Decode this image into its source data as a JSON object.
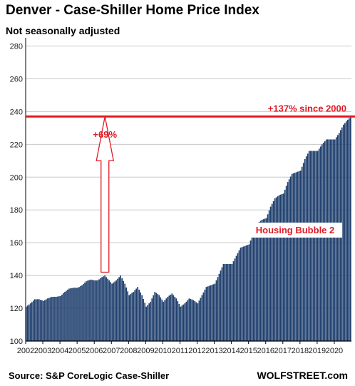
{
  "header": {
    "title": "Denver - Case-Shiller Home Price Index",
    "subtitle": "Not seasonally adjusted"
  },
  "footer": {
    "source": "Source: S&P CoreLogic Case-Shiller",
    "brand": "WOLFSTREET.com"
  },
  "colors": {
    "bar": "#1f3f6e",
    "reference_line": "#e01b24",
    "annotation": "#e01b24",
    "grid": "#c8c8c8"
  },
  "chart_data": {
    "type": "bar",
    "title": "Denver - Case-Shiller Home Price Index",
    "subtitle": "Not seasonally adjusted",
    "frequency": "monthly",
    "x_start": "2002-01",
    "x_end": "2020-12",
    "xticks": [
      "2002",
      "2003",
      "2004",
      "2005",
      "2006",
      "2007",
      "2008",
      "2009",
      "2010",
      "2011",
      "2012",
      "2013",
      "2014",
      "2015",
      "2016",
      "2017",
      "2018",
      "2019",
      "2020"
    ],
    "yticks": [
      100,
      120,
      140,
      160,
      180,
      200,
      220,
      240,
      260,
      280
    ],
    "ylim": [
      100,
      285
    ],
    "grid": true,
    "anchors": [
      [
        "2002-01",
        121
      ],
      [
        "2002-04",
        123
      ],
      [
        "2002-07",
        125.5
      ],
      [
        "2002-10",
        125.5
      ],
      [
        "2003-01",
        124.5
      ],
      [
        "2003-04",
        126
      ],
      [
        "2003-07",
        127
      ],
      [
        "2003-10",
        127
      ],
      [
        "2004-01",
        127.5
      ],
      [
        "2004-04",
        130
      ],
      [
        "2004-07",
        132
      ],
      [
        "2004-10",
        132.5
      ],
      [
        "2005-01",
        132.5
      ],
      [
        "2005-04",
        134
      ],
      [
        "2005-07",
        136.5
      ],
      [
        "2005-10",
        137.5
      ],
      [
        "2006-01",
        137
      ],
      [
        "2006-03",
        137
      ],
      [
        "2006-06",
        139
      ],
      [
        "2006-08",
        140
      ],
      [
        "2006-10",
        138
      ],
      [
        "2007-01",
        135
      ],
      [
        "2007-04",
        137
      ],
      [
        "2007-07",
        140
      ],
      [
        "2007-10",
        135
      ],
      [
        "2008-01",
        128
      ],
      [
        "2008-04",
        130
      ],
      [
        "2008-07",
        133
      ],
      [
        "2008-10",
        128
      ],
      [
        "2009-01",
        121
      ],
      [
        "2009-04",
        124
      ],
      [
        "2009-07",
        130
      ],
      [
        "2009-10",
        128
      ],
      [
        "2010-01",
        124
      ],
      [
        "2010-04",
        127
      ],
      [
        "2010-07",
        129
      ],
      [
        "2010-10",
        126
      ],
      [
        "2011-01",
        121
      ],
      [
        "2011-04",
        123
      ],
      [
        "2011-07",
        126
      ],
      [
        "2011-10",
        125
      ],
      [
        "2012-01",
        123
      ],
      [
        "2012-04",
        128
      ],
      [
        "2012-07",
        133
      ],
      [
        "2012-10",
        134
      ],
      [
        "2013-01",
        135
      ],
      [
        "2013-04",
        141
      ],
      [
        "2013-07",
        147
      ],
      [
        "2013-10",
        147
      ],
      [
        "2014-01",
        147
      ],
      [
        "2014-04",
        152
      ],
      [
        "2014-07",
        157
      ],
      [
        "2014-10",
        158
      ],
      [
        "2015-01",
        159
      ],
      [
        "2015-04",
        166
      ],
      [
        "2015-07",
        172
      ],
      [
        "2015-10",
        174
      ],
      [
        "2016-01",
        175
      ],
      [
        "2016-04",
        182
      ],
      [
        "2016-07",
        187
      ],
      [
        "2016-10",
        189
      ],
      [
        "2017-01",
        190
      ],
      [
        "2017-04",
        197
      ],
      [
        "2017-07",
        202
      ],
      [
        "2017-10",
        203
      ],
      [
        "2018-01",
        204
      ],
      [
        "2018-04",
        211
      ],
      [
        "2018-07",
        216
      ],
      [
        "2018-10",
        216
      ],
      [
        "2019-01",
        216
      ],
      [
        "2019-04",
        220
      ],
      [
        "2019-07",
        223
      ],
      [
        "2019-10",
        223
      ],
      [
        "2020-01",
        223
      ],
      [
        "2020-04",
        227
      ],
      [
        "2020-07",
        232
      ],
      [
        "2020-10",
        235
      ],
      [
        "2020-12",
        237
      ]
    ],
    "reference_line": {
      "value": 237,
      "label": "+137% since 2000"
    },
    "arrow": {
      "from_value": 142,
      "to_value": 237,
      "at": "2006-08",
      "label": "+69%"
    },
    "annotation": "Housing Bubble 2"
  }
}
